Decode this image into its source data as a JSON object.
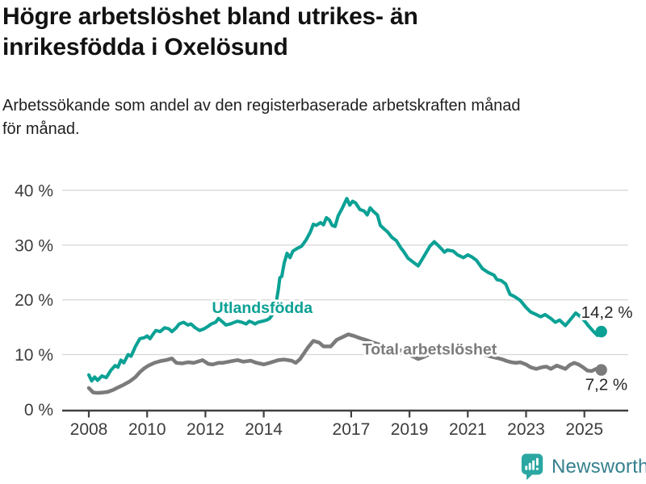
{
  "header": {
    "title_lines": [
      "Högre arbetslöshet bland utrikes- än",
      "inrikesfödda i Oxelösund"
    ],
    "subtitle_lines": [
      "Arbetssökande som andel av den registerbaserade arbetskraften månad",
      "för månad."
    ]
  },
  "chart_data": {
    "type": "line",
    "title": "Högre arbetslöshet bland utrikes- än inrikesfödda i Oxelösund",
    "subtitle": "Arbetssökande som andel av den registerbaserade arbetskraften månad för månad.",
    "unit": "%",
    "grid": true,
    "colors": {
      "grid": "#d9d9d9",
      "axis": "#404040",
      "tick_label": "#3d3d3d",
      "end_label": "#262626"
    },
    "x_axis": {
      "range_years": [
        2008,
        2025.58
      ],
      "ticks": [
        {
          "value": 2008,
          "label": "2008"
        },
        {
          "value": 2010,
          "label": "2010"
        },
        {
          "value": 2012,
          "label": "2012"
        },
        {
          "value": 2014,
          "label": "2014"
        },
        {
          "value": 2017,
          "label": "2017"
        },
        {
          "value": 2019,
          "label": "2019"
        },
        {
          "value": 2021,
          "label": "2021"
        },
        {
          "value": 2023,
          "label": "2023"
        },
        {
          "value": 2025,
          "label": "2025"
        }
      ]
    },
    "y_axis": {
      "range": [
        0,
        44
      ],
      "ticks": [
        {
          "value": 0,
          "label": "0 %"
        },
        {
          "value": 10,
          "label": "10 %"
        },
        {
          "value": 20,
          "label": "20 %"
        },
        {
          "value": 30,
          "label": "30 %"
        },
        {
          "value": 40,
          "label": "40 %"
        }
      ]
    },
    "series": [
      {
        "id": "utlandsfodda",
        "name": "Utlandsfödda",
        "color": "#0ba195",
        "final_value": 14.2,
        "end_label": "14,2 %",
        "end_label_offset": [
          -25,
          -17
        ],
        "label_at": [
          2013.95,
          18.6
        ],
        "points": [
          [
            2008.0,
            6.3
          ],
          [
            2008.1,
            5.2
          ],
          [
            2008.2,
            5.9
          ],
          [
            2008.3,
            5.3
          ],
          [
            2008.45,
            6.1
          ],
          [
            2008.6,
            5.8
          ],
          [
            2008.75,
            7.1
          ],
          [
            2008.9,
            8.0
          ],
          [
            2009.0,
            7.7
          ],
          [
            2009.1,
            9.0
          ],
          [
            2009.2,
            8.5
          ],
          [
            2009.35,
            10.0
          ],
          [
            2009.45,
            9.7
          ],
          [
            2009.6,
            11.5
          ],
          [
            2009.75,
            12.9
          ],
          [
            2009.9,
            13.1
          ],
          [
            2010.0,
            13.4
          ],
          [
            2010.1,
            12.9
          ],
          [
            2010.2,
            13.7
          ],
          [
            2010.3,
            14.4
          ],
          [
            2010.45,
            14.2
          ],
          [
            2010.6,
            14.9
          ],
          [
            2010.75,
            14.7
          ],
          [
            2010.85,
            14.2
          ],
          [
            2011.0,
            14.9
          ],
          [
            2011.1,
            15.6
          ],
          [
            2011.25,
            15.9
          ],
          [
            2011.4,
            15.4
          ],
          [
            2011.5,
            15.6
          ],
          [
            2011.65,
            14.9
          ],
          [
            2011.8,
            14.4
          ],
          [
            2011.95,
            14.7
          ],
          [
            2012.1,
            15.2
          ],
          [
            2012.2,
            15.6
          ],
          [
            2012.35,
            15.9
          ],
          [
            2012.45,
            16.6
          ],
          [
            2012.6,
            15.9
          ],
          [
            2012.7,
            15.4
          ],
          [
            2012.85,
            15.6
          ],
          [
            2013.0,
            15.9
          ],
          [
            2013.1,
            16.1
          ],
          [
            2013.25,
            15.9
          ],
          [
            2013.4,
            15.6
          ],
          [
            2013.5,
            16.1
          ],
          [
            2013.6,
            15.9
          ],
          [
            2013.7,
            15.6
          ],
          [
            2013.8,
            15.9
          ],
          [
            2013.95,
            16.1
          ],
          [
            2014.1,
            16.3
          ],
          [
            2014.2,
            16.6
          ],
          [
            2014.3,
            17.3
          ],
          [
            2014.4,
            18.6
          ],
          [
            2014.5,
            21.8
          ],
          [
            2014.55,
            24.0
          ],
          [
            2014.62,
            24.3
          ],
          [
            2014.7,
            26.7
          ],
          [
            2014.8,
            28.5
          ],
          [
            2014.9,
            27.7
          ],
          [
            2015.0,
            28.9
          ],
          [
            2015.15,
            29.4
          ],
          [
            2015.3,
            29.8
          ],
          [
            2015.45,
            30.9
          ],
          [
            2015.6,
            32.4
          ],
          [
            2015.7,
            33.8
          ],
          [
            2015.8,
            33.6
          ],
          [
            2015.95,
            34.1
          ],
          [
            2016.05,
            33.7
          ],
          [
            2016.15,
            35.0
          ],
          [
            2016.25,
            34.6
          ],
          [
            2016.35,
            33.6
          ],
          [
            2016.45,
            33.4
          ],
          [
            2016.55,
            35.3
          ],
          [
            2016.7,
            36.8
          ],
          [
            2016.85,
            38.5
          ],
          [
            2016.95,
            37.3
          ],
          [
            2017.05,
            38.0
          ],
          [
            2017.15,
            37.7
          ],
          [
            2017.3,
            36.5
          ],
          [
            2017.45,
            36.2
          ],
          [
            2017.55,
            35.5
          ],
          [
            2017.65,
            36.8
          ],
          [
            2017.75,
            36.2
          ],
          [
            2017.9,
            35.5
          ],
          [
            2018.0,
            33.6
          ],
          [
            2018.1,
            33.1
          ],
          [
            2018.25,
            32.4
          ],
          [
            2018.4,
            31.4
          ],
          [
            2018.55,
            30.8
          ],
          [
            2018.7,
            29.5
          ],
          [
            2018.8,
            28.8
          ],
          [
            2018.95,
            27.6
          ],
          [
            2019.1,
            27.0
          ],
          [
            2019.3,
            26.2
          ],
          [
            2019.5,
            28.0
          ],
          [
            2019.7,
            29.8
          ],
          [
            2019.85,
            30.6
          ],
          [
            2019.95,
            30.1
          ],
          [
            2020.1,
            29.3
          ],
          [
            2020.2,
            28.7
          ],
          [
            2020.3,
            29.1
          ],
          [
            2020.5,
            28.9
          ],
          [
            2020.65,
            28.2
          ],
          [
            2020.85,
            27.7
          ],
          [
            2021.0,
            28.2
          ],
          [
            2021.15,
            27.8
          ],
          [
            2021.3,
            27.2
          ],
          [
            2021.5,
            25.7
          ],
          [
            2021.7,
            25.0
          ],
          [
            2021.9,
            24.5
          ],
          [
            2022.0,
            23.7
          ],
          [
            2022.15,
            23.5
          ],
          [
            2022.3,
            22.9
          ],
          [
            2022.45,
            21.0
          ],
          [
            2022.6,
            20.6
          ],
          [
            2022.8,
            19.9
          ],
          [
            2023.0,
            18.6
          ],
          [
            2023.15,
            17.8
          ],
          [
            2023.35,
            17.3
          ],
          [
            2023.5,
            16.9
          ],
          [
            2023.65,
            17.3
          ],
          [
            2023.85,
            16.6
          ],
          [
            2024.0,
            15.9
          ],
          [
            2024.15,
            16.3
          ],
          [
            2024.35,
            15.3
          ],
          [
            2024.55,
            16.6
          ],
          [
            2024.7,
            17.6
          ],
          [
            2024.85,
            17.0
          ],
          [
            2025.0,
            16.2
          ],
          [
            2025.15,
            15.2
          ],
          [
            2025.3,
            14.3
          ],
          [
            2025.45,
            13.5
          ],
          [
            2025.58,
            14.2
          ]
        ]
      },
      {
        "id": "total-arbetsloshet",
        "name": "Total arbetslöshet",
        "color": "#7b7b7b",
        "final_value": 7.2,
        "end_label": "7,2 %",
        "end_label_offset": [
          -20,
          25
        ],
        "label_at": [
          2019.69,
          11.05
        ],
        "points": [
          [
            2008.0,
            3.9
          ],
          [
            2008.15,
            3.1
          ],
          [
            2008.3,
            3.0
          ],
          [
            2008.5,
            3.1
          ],
          [
            2008.65,
            3.2
          ],
          [
            2008.85,
            3.6
          ],
          [
            2009.0,
            4.0
          ],
          [
            2009.2,
            4.5
          ],
          [
            2009.4,
            5.1
          ],
          [
            2009.6,
            5.9
          ],
          [
            2009.75,
            6.8
          ],
          [
            2009.9,
            7.5
          ],
          [
            2010.05,
            8.0
          ],
          [
            2010.25,
            8.5
          ],
          [
            2010.45,
            8.8
          ],
          [
            2010.65,
            9.0
          ],
          [
            2010.85,
            9.3
          ],
          [
            2011.0,
            8.5
          ],
          [
            2011.2,
            8.4
          ],
          [
            2011.4,
            8.6
          ],
          [
            2011.6,
            8.5
          ],
          [
            2011.9,
            9.0
          ],
          [
            2012.1,
            8.3
          ],
          [
            2012.25,
            8.2
          ],
          [
            2012.45,
            8.5
          ],
          [
            2012.6,
            8.5
          ],
          [
            2012.8,
            8.7
          ],
          [
            2013.1,
            9.0
          ],
          [
            2013.3,
            8.7
          ],
          [
            2013.55,
            8.9
          ],
          [
            2013.75,
            8.5
          ],
          [
            2014.0,
            8.2
          ],
          [
            2014.2,
            8.5
          ],
          [
            2014.5,
            9.0
          ],
          [
            2014.7,
            9.1
          ],
          [
            2014.95,
            8.9
          ],
          [
            2015.1,
            8.5
          ],
          [
            2015.25,
            9.2
          ],
          [
            2015.5,
            11.2
          ],
          [
            2015.7,
            12.5
          ],
          [
            2015.9,
            12.2
          ],
          [
            2016.05,
            11.5
          ],
          [
            2016.3,
            11.5
          ],
          [
            2016.5,
            12.7
          ],
          [
            2016.7,
            13.2
          ],
          [
            2016.9,
            13.7
          ],
          [
            2017.1,
            13.4
          ],
          [
            2017.3,
            13.0
          ],
          [
            2017.5,
            12.7
          ],
          [
            2017.75,
            12.2
          ],
          [
            2018.0,
            11.8
          ],
          [
            2018.3,
            11.3
          ],
          [
            2018.6,
            11.0
          ],
          [
            2018.9,
            10.3
          ],
          [
            2019.1,
            9.7
          ],
          [
            2019.3,
            9.2
          ],
          [
            2019.5,
            9.6
          ],
          [
            2019.75,
            10.2
          ],
          [
            2020.0,
            10.5
          ],
          [
            2020.25,
            11.3
          ],
          [
            2020.5,
            11.2
          ],
          [
            2020.75,
            11.0
          ],
          [
            2021.0,
            10.8
          ],
          [
            2021.25,
            10.5
          ],
          [
            2021.5,
            10.1
          ],
          [
            2021.75,
            9.7
          ],
          [
            2022.0,
            9.4
          ],
          [
            2022.2,
            9.1
          ],
          [
            2022.35,
            8.8
          ],
          [
            2022.5,
            8.6
          ],
          [
            2022.65,
            8.5
          ],
          [
            2022.8,
            8.6
          ],
          [
            2023.0,
            8.2
          ],
          [
            2023.15,
            7.7
          ],
          [
            2023.35,
            7.4
          ],
          [
            2023.55,
            7.7
          ],
          [
            2023.7,
            7.8
          ],
          [
            2023.85,
            7.4
          ],
          [
            2024.05,
            8.0
          ],
          [
            2024.2,
            7.7
          ],
          [
            2024.35,
            7.4
          ],
          [
            2024.5,
            8.1
          ],
          [
            2024.65,
            8.5
          ],
          [
            2024.8,
            8.2
          ],
          [
            2024.95,
            7.7
          ],
          [
            2025.1,
            7.1
          ],
          [
            2025.25,
            7.0
          ],
          [
            2025.4,
            7.4
          ],
          [
            2025.58,
            7.2
          ]
        ]
      }
    ]
  },
  "branding": {
    "name": "Newsworthy",
    "icon": "newsworthy-bars-logo",
    "icon_color": "#2ba7a2",
    "text_color": "#35808e"
  }
}
